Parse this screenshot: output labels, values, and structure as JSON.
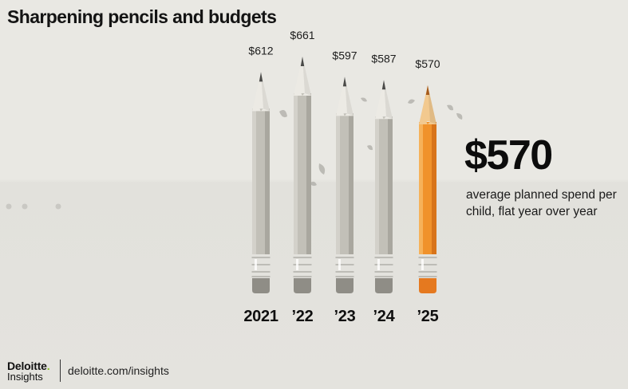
{
  "title": "Sharpening pencils and budgets",
  "chart_data": {
    "type": "bar",
    "categories": [
      "2021",
      "’22",
      "’23",
      "’24",
      "’25"
    ],
    "values": [
      612,
      661,
      597,
      587,
      570
    ],
    "value_labels": [
      "$612",
      "$661",
      "$597",
      "$587",
      "$570"
    ],
    "highlight_index": 4,
    "colors": {
      "default": "#c2c0b8",
      "highlight": "#f0922b"
    }
  },
  "callout": {
    "value": "$570",
    "text": "average planned spend per child, flat year over year"
  },
  "footer": {
    "brand": "Deloitte",
    "brand_dot": ".",
    "brand_sub": "Insights",
    "site": "deloitte.com/insights"
  }
}
